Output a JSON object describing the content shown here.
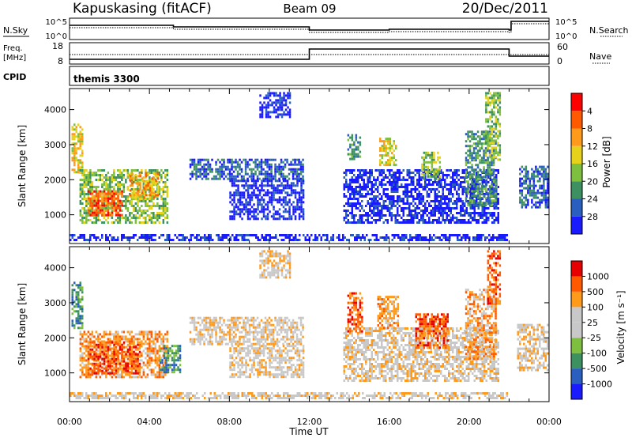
{
  "header": {
    "station": "Kapuskasing (fitACF)",
    "beam": "Beam 09",
    "date": "20/Dec/2011"
  },
  "summary_panels": {
    "nsky_label": "N.Sky",
    "nsky_ticks": [
      "10^5",
      "10^0"
    ],
    "nsearch_label": "N.Search",
    "nsearch_ticks": [
      "10^5",
      "10^0"
    ],
    "freq_label_line1": "Freq.",
    "freq_label_line2": "[MHz]",
    "freq_ticks": [
      "18",
      "8"
    ],
    "nave_label": "Nave",
    "nave_ticks": [
      "60",
      "0"
    ],
    "cpid_label": "CPID",
    "cpid_value": "themis 3300"
  },
  "colors": {
    "power": [
      "#1a1aff",
      "#2a5fbf",
      "#3d9160",
      "#7fbf3f",
      "#e6d21a",
      "#ff9a1a",
      "#ff5a00",
      "#ff0000"
    ],
    "velocity": [
      "#e60000",
      "#ff5a00",
      "#ff9a1a",
      "#c8c8c8",
      "#c8c8c8",
      "#7fbf3f",
      "#3d9160",
      "#2a5fbf",
      "#1a1aff"
    ],
    "ground_grey": "#b9b9b9"
  },
  "chart_data": [
    {
      "type": "heatmap",
      "name": "power",
      "xlabel": "Time UT",
      "ylabel": "Slant Range [km]",
      "xlim": [
        0,
        24
      ],
      "ylim": [
        180,
        4600
      ],
      "x_ticks": [
        "00:00",
        "04:00",
        "08:00",
        "12:00",
        "16:00",
        "20:00",
        "00:00"
      ],
      "y_ticks": [
        1000,
        2000,
        3000,
        4000
      ],
      "colorbar_label": "Power [dB]",
      "colorbar_ticks": [
        "4",
        "8",
        "12",
        "16",
        "20",
        "24",
        "28"
      ],
      "regions": [
        {
          "t0": 0.1,
          "t1": 0.6,
          "r0": 2200,
          "r1": 3600,
          "level": 4
        },
        {
          "t0": 0.5,
          "t1": 4.9,
          "r0": 800,
          "r1": 2300,
          "level": 3
        },
        {
          "t0": 0.9,
          "t1": 2.6,
          "r0": 1000,
          "r1": 1700,
          "level": 6
        },
        {
          "t0": 3.0,
          "t1": 4.4,
          "r0": 1500,
          "r1": 2200,
          "level": 5
        },
        {
          "t0": 6.0,
          "t1": 11.7,
          "r0": 2000,
          "r1": 2600,
          "level": 1
        },
        {
          "t0": 8.0,
          "t1": 11.7,
          "r0": 900,
          "r1": 2000,
          "level": 0
        },
        {
          "t0": 9.5,
          "t1": 11.0,
          "r0": 3800,
          "r1": 4500,
          "level": 0
        },
        {
          "t0": 13.7,
          "t1": 21.5,
          "r0": 800,
          "r1": 2300,
          "level": 0
        },
        {
          "t0": 13.9,
          "t1": 14.5,
          "r0": 2600,
          "r1": 3300,
          "level": 2
        },
        {
          "t0": 15.5,
          "t1": 16.3,
          "r0": 2400,
          "r1": 3200,
          "level": 4
        },
        {
          "t0": 17.6,
          "t1": 18.5,
          "r0": 2000,
          "r1": 2800,
          "level": 3
        },
        {
          "t0": 19.8,
          "t1": 21.3,
          "r0": 1300,
          "r1": 3400,
          "level": 2
        },
        {
          "t0": 20.8,
          "t1": 21.5,
          "r0": 2600,
          "r1": 4500,
          "level": 3
        },
        {
          "t0": 22.5,
          "t1": 23.9,
          "r0": 1200,
          "r1": 2400,
          "level": 1
        },
        {
          "t0": 0.0,
          "t1": 21.9,
          "r0": 250,
          "r1": 450,
          "level": 0
        }
      ]
    },
    {
      "type": "heatmap",
      "name": "velocity",
      "xlabel": "Time UT",
      "ylabel": "Slant Range [km]",
      "xlim": [
        0,
        24
      ],
      "ylim": [
        180,
        4600
      ],
      "x_ticks": [
        "00:00",
        "04:00",
        "08:00",
        "12:00",
        "16:00",
        "20:00",
        "00:00"
      ],
      "y_ticks": [
        1000,
        2000,
        3000,
        4000
      ],
      "colorbar_label": "Velocity [m s⁻¹]",
      "colorbar_ticks": [
        "1000",
        "500",
        "100",
        "25",
        "-25",
        "-100",
        "-500",
        "-1000"
      ],
      "regions": [
        {
          "t0": 0.1,
          "t1": 0.6,
          "r0": 2300,
          "r1": 3600,
          "level": 6
        },
        {
          "t0": 0.5,
          "t1": 4.9,
          "r0": 900,
          "r1": 2200,
          "level": 2
        },
        {
          "t0": 0.9,
          "t1": 3.5,
          "r0": 1000,
          "r1": 1900,
          "level": 1
        },
        {
          "t0": 4.5,
          "t1": 5.5,
          "r0": 1000,
          "r1": 1800,
          "level": 6
        },
        {
          "t0": 6.0,
          "t1": 11.7,
          "r0": 1800,
          "r1": 2600,
          "level": 3
        },
        {
          "t0": 8.0,
          "t1": 11.7,
          "r0": 900,
          "r1": 1800,
          "level": 3
        },
        {
          "t0": 9.5,
          "t1": 11.0,
          "r0": 3700,
          "r1": 4500,
          "level": 3
        },
        {
          "t0": 13.7,
          "t1": 21.5,
          "r0": 800,
          "r1": 2300,
          "level": 3
        },
        {
          "t0": 13.9,
          "t1": 14.6,
          "r0": 2200,
          "r1": 3300,
          "level": 1
        },
        {
          "t0": 15.4,
          "t1": 16.4,
          "r0": 2300,
          "r1": 3200,
          "level": 2
        },
        {
          "t0": 17.3,
          "t1": 18.9,
          "r0": 1700,
          "r1": 2700,
          "level": 1
        },
        {
          "t0": 19.8,
          "t1": 21.3,
          "r0": 1400,
          "r1": 3400,
          "level": 2
        },
        {
          "t0": 20.9,
          "t1": 21.5,
          "r0": 3000,
          "r1": 4500,
          "level": 1
        },
        {
          "t0": 22.4,
          "t1": 23.9,
          "r0": 1100,
          "r1": 2400,
          "level": 3
        },
        {
          "t0": 0.0,
          "t1": 21.9,
          "r0": 250,
          "r1": 450,
          "level": 3
        }
      ]
    }
  ]
}
